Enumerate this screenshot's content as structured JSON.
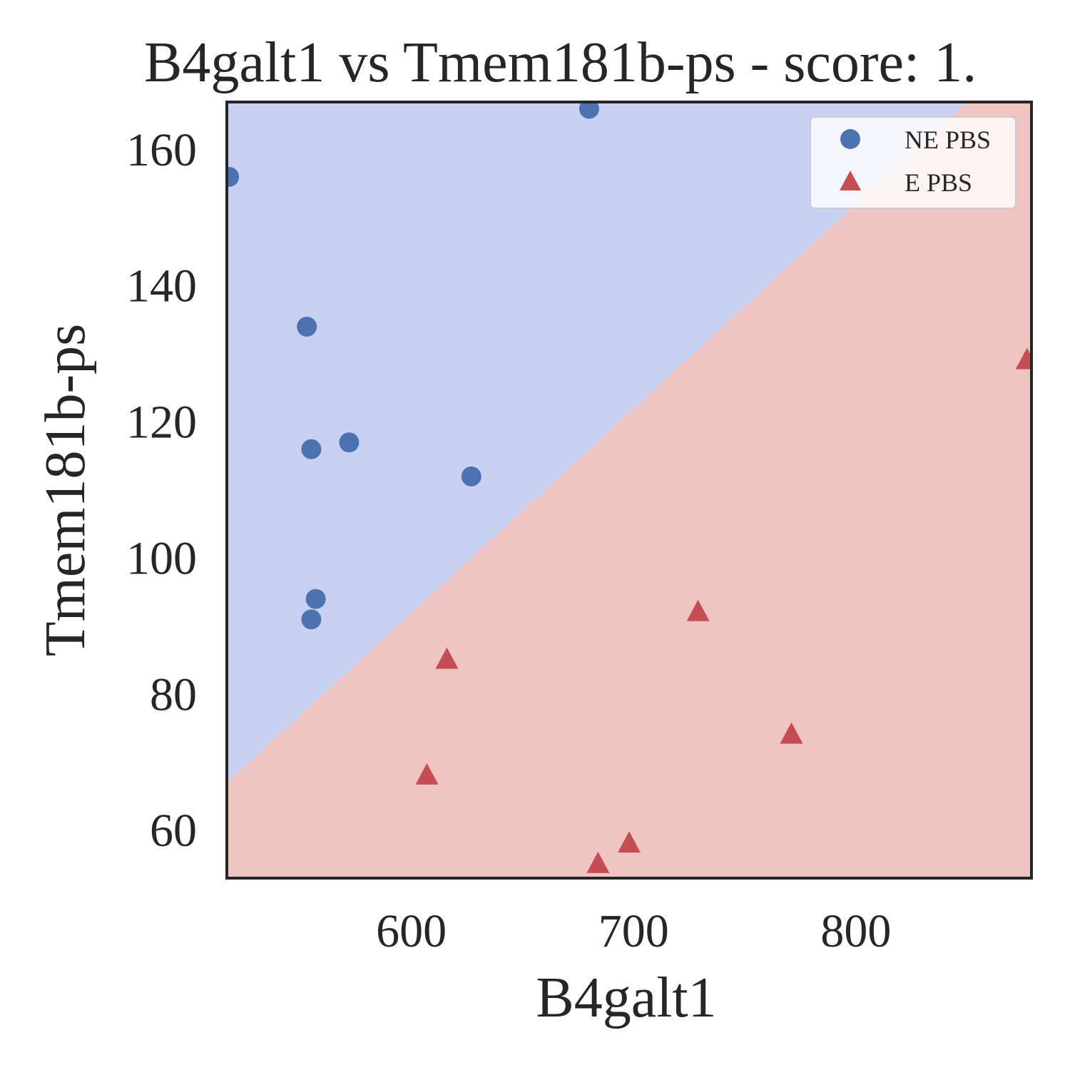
{
  "chart_data": {
    "type": "scatter",
    "title": "B4galt1 vs Tmem181b-ps - score: 1.",
    "xlabel": "B4galt1",
    "ylabel": "Tmem181b-ps",
    "xlim": [
      517,
      879
    ],
    "ylim": [
      53,
      167
    ],
    "xticks": [
      600,
      700,
      800
    ],
    "yticks": [
      60,
      80,
      100,
      120,
      140,
      160
    ],
    "grid": false,
    "legend_position": "top-right",
    "decision_boundary": {
      "points": [
        [
          517,
          67
        ],
        [
          850,
          167
        ]
      ],
      "upper_color": "#c8d1f1",
      "lower_color": "#efc5c4"
    },
    "series": [
      {
        "name": "NE PBS",
        "marker": "circle",
        "color": "#4c72b0",
        "points": [
          [
            518,
            156
          ],
          [
            553,
            134
          ],
          [
            555,
            116
          ],
          [
            572,
            117
          ],
          [
            627,
            112
          ],
          [
            680,
            166
          ],
          [
            557,
            94
          ],
          [
            555,
            91
          ]
        ]
      },
      {
        "name": "E PBS",
        "marker": "triangle",
        "color": "#c44e52",
        "points": [
          [
            616,
            85
          ],
          [
            607,
            68
          ],
          [
            684,
            55
          ],
          [
            698,
            58
          ],
          [
            729,
            92
          ],
          [
            771,
            74
          ],
          [
            877,
            129
          ]
        ]
      }
    ]
  }
}
